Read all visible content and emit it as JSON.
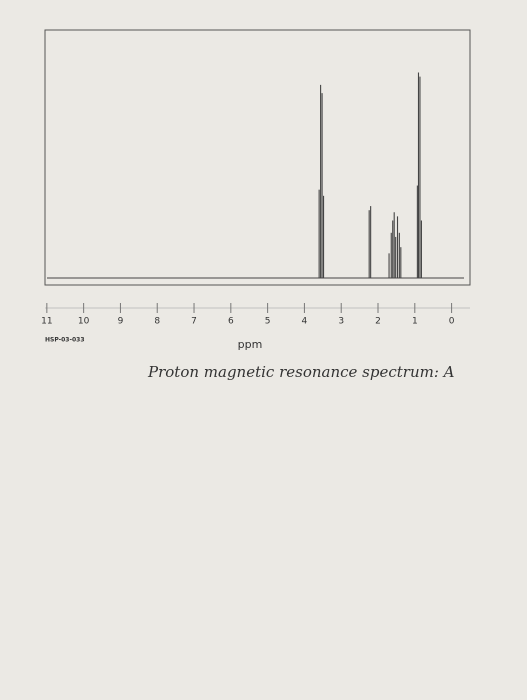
{
  "chart_data": {
    "type": "stem",
    "x_label": "ppm",
    "code": "HSP-03-033",
    "caption": "Proton magnetic resonance spectrum: A",
    "x": [
      3.6,
      3.56,
      3.52,
      3.48,
      2.24,
      2.2,
      1.7,
      1.64,
      1.6,
      1.56,
      1.52,
      1.47,
      1.42,
      1.38,
      0.93,
      0.9,
      0.86,
      0.82
    ],
    "values": [
      43,
      94,
      90,
      40,
      33,
      35,
      12,
      22,
      28,
      32,
      20,
      30,
      22,
      15,
      45,
      100,
      98,
      28
    ],
    "color": "#444444",
    "xlim": [
      11.05,
      -0.5
    ],
    "ylim": [
      0,
      110
    ],
    "xticks": [
      11,
      10,
      9,
      8,
      7,
      6,
      5,
      4,
      3,
      2,
      1,
      0
    ]
  }
}
